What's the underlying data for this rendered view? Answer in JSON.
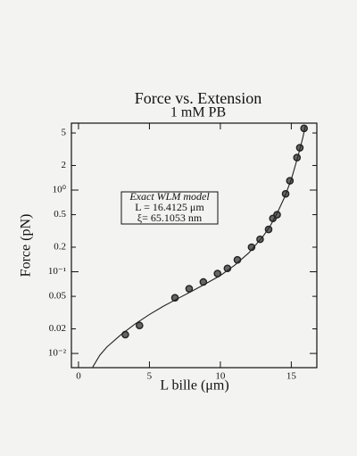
{
  "chart_data": {
    "type": "scatter",
    "title": "Force vs. Extension",
    "subtitle": "1 mM PB",
    "xlabel": "L bille (μm)",
    "ylabel": "Force (pN)",
    "xlim": [
      -0.5,
      16.8
    ],
    "ylim": [
      0.0067,
      6.6
    ],
    "log_y": true,
    "xticks": [
      0,
      5,
      10,
      15
    ],
    "yticks": [
      5,
      2,
      {
        "value": 1,
        "label": "10⁰"
      },
      0.5,
      0.2,
      {
        "value": 0.1,
        "label": "10⁻¹"
      },
      0.05,
      0.02,
      {
        "value": 0.01,
        "label": "10⁻²"
      }
    ],
    "annotation": [
      "Exact WLM model",
      "L =  16.4125 μm",
      "ξ= 65.1053 nm"
    ],
    "series": [
      {
        "kind": "points",
        "color": "#222222",
        "x": [
          3.3,
          4.3,
          6.8,
          7.8,
          8.8,
          9.8,
          10.5,
          11.2,
          12.2,
          12.8,
          13.4,
          13.7,
          14.0,
          14.6,
          14.9,
          15.4,
          15.6,
          15.9
        ],
        "values": [
          0.017,
          0.022,
          0.048,
          0.062,
          0.075,
          0.095,
          0.11,
          0.14,
          0.2,
          0.25,
          0.33,
          0.45,
          0.5,
          0.9,
          1.3,
          2.5,
          3.3,
          5.7
        ]
      },
      {
        "kind": "line",
        "color": "#222222",
        "x": [
          1.0,
          1.5,
          2,
          3,
          4,
          5,
          6,
          7,
          8,
          9,
          10,
          11,
          12,
          13,
          13.5,
          14,
          14.5,
          15,
          15.5,
          15.8,
          16.0
        ],
        "values": [
          0.0068,
          0.0095,
          0.012,
          0.017,
          0.023,
          0.03,
          0.038,
          0.047,
          0.058,
          0.072,
          0.09,
          0.12,
          0.17,
          0.27,
          0.36,
          0.52,
          0.8,
          1.35,
          2.7,
          4.3,
          6.2
        ]
      }
    ]
  }
}
